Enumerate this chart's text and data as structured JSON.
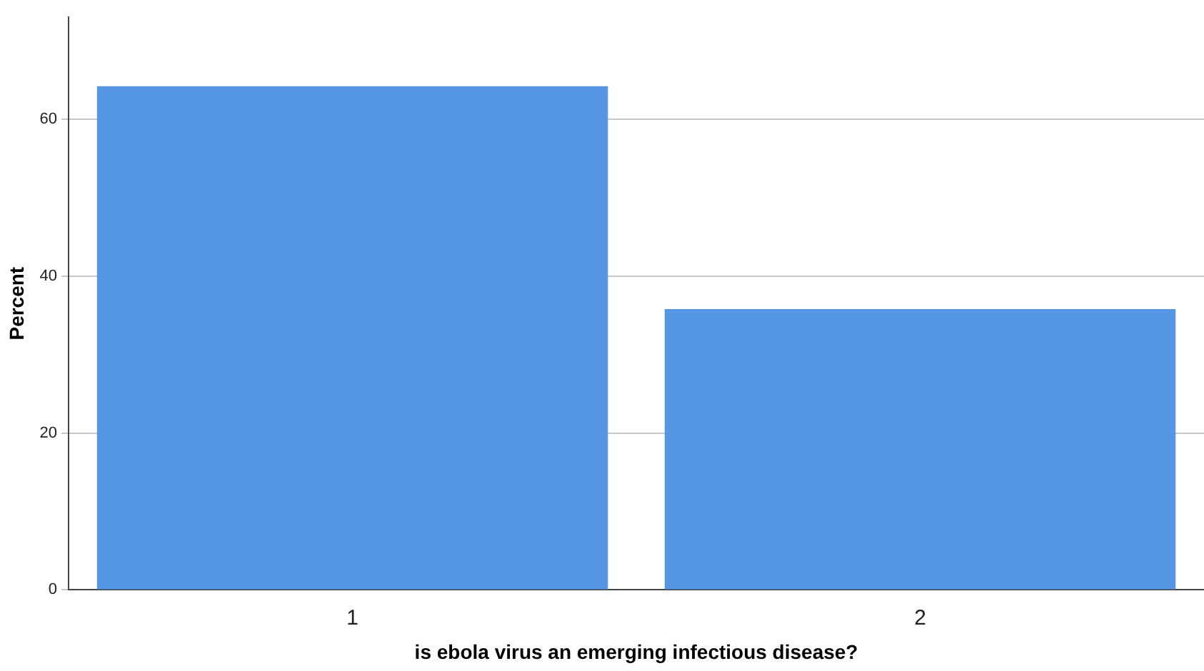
{
  "chart_data": {
    "type": "bar",
    "xlabel": "is ebola virus an emerging infectious disease?",
    "ylabel": "Percent",
    "categories": [
      "1",
      "2"
    ],
    "values": [
      64.2,
      35.8
    ],
    "color": "#5597e5",
    "ylim": [
      0,
      73
    ],
    "yticks": [
      0,
      20,
      40,
      60
    ],
    "grid": "y"
  }
}
